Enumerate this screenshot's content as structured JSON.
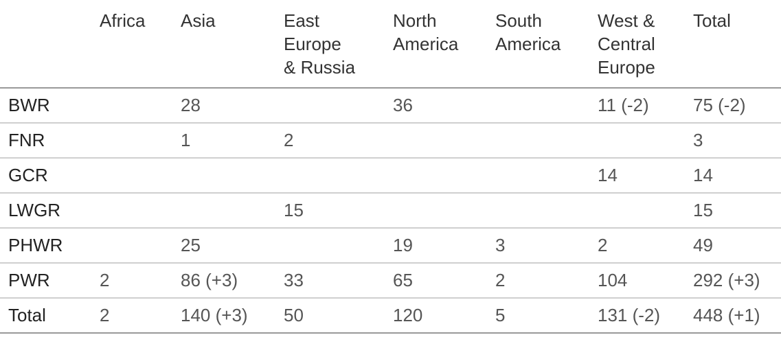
{
  "table": {
    "headers": [
      [
        "Africa"
      ],
      [
        "Asia"
      ],
      [
        "East",
        "Europe",
        "& Russia"
      ],
      [
        "North",
        "America"
      ],
      [
        "South",
        "America"
      ],
      [
        "West &",
        "Central",
        "Europe"
      ],
      [
        "Total"
      ]
    ],
    "rows": [
      {
        "label": "BWR",
        "cells": [
          "",
          "28",
          "",
          "36",
          "",
          "11 (-2)",
          "75 (-2)"
        ]
      },
      {
        "label": "FNR",
        "cells": [
          "",
          "1",
          "2",
          "",
          "",
          "",
          "3"
        ]
      },
      {
        "label": "GCR",
        "cells": [
          "",
          "",
          "",
          "",
          "",
          "14",
          "14"
        ]
      },
      {
        "label": "LWGR",
        "cells": [
          "",
          "",
          "15",
          "",
          "",
          "",
          "15"
        ]
      },
      {
        "label": "PHWR",
        "cells": [
          "",
          "25",
          "",
          "19",
          "3",
          "2",
          "49"
        ]
      },
      {
        "label": "PWR",
        "cells": [
          "2",
          "86 (+3)",
          "33",
          "65",
          "2",
          "104",
          "292 (+3)"
        ]
      },
      {
        "label": "Total",
        "cells": [
          "2",
          "140 (+3)",
          "50",
          "120",
          "5",
          "131 (-2)",
          "448 (+1)"
        ]
      }
    ]
  }
}
